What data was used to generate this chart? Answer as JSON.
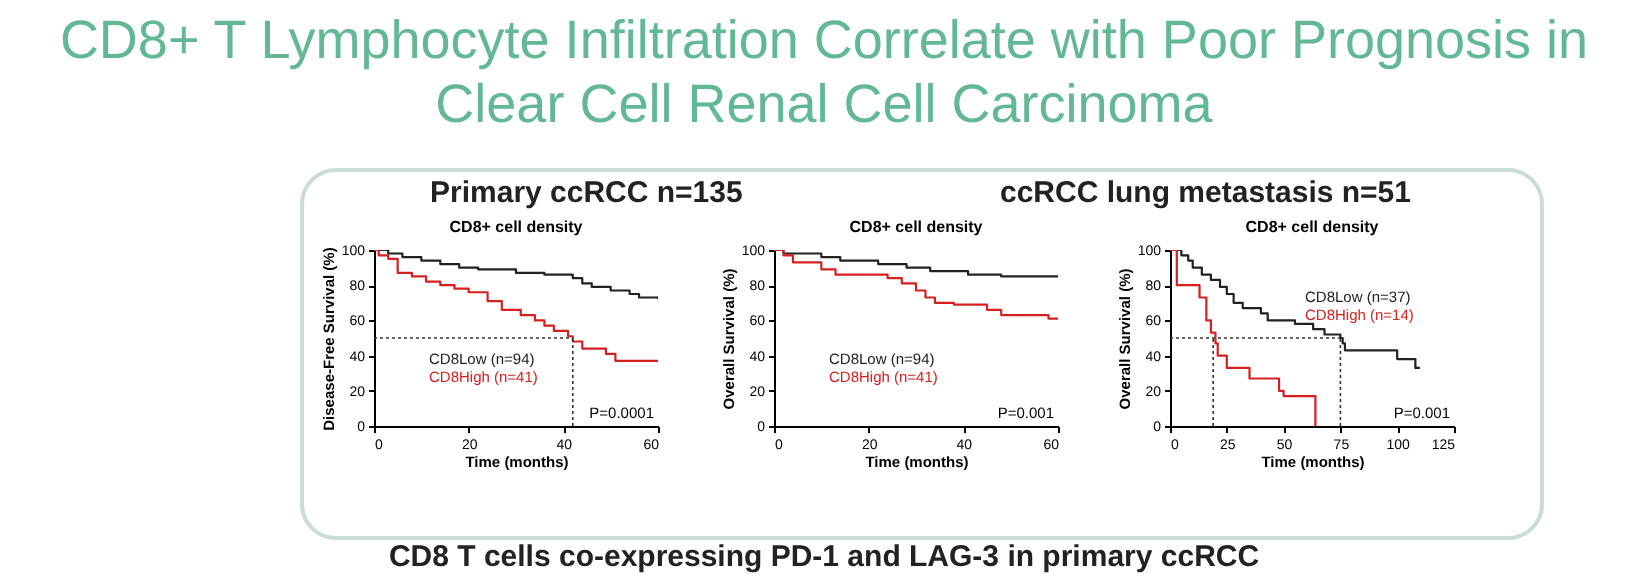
{
  "chart_data": [
    {
      "type": "step",
      "title": "CD8+ cell density",
      "xlabel": "Time (months)",
      "ylabel": "Disease-Free Survival (%)",
      "xlim": [
        0,
        60
      ],
      "xticks": [
        0,
        20,
        40,
        60
      ],
      "ylim": [
        0,
        100
      ],
      "yticks": [
        0,
        20,
        40,
        60,
        80,
        100
      ],
      "legend": "bottom left",
      "grid": false,
      "annotations": [
        "CD8+ T Lymphocyte Infiltration Correlate with Poor Prognosis in Clear Cell Renal Cell Carcinoma",
        "Primary ccRCC n=135",
        "P=0.0001"
      ],
      "ref_lines": [
        {
          "axis": "y",
          "value": 50,
          "line_style": "dotted"
        },
        {
          "axis": "x",
          "value": 42,
          "line_style": "dotted"
        }
      ],
      "series": [
        {
          "name": "CD8Low (n=94)",
          "color": "#222222",
          "x": [
            0,
            3,
            6,
            10,
            14,
            18,
            22,
            30,
            36,
            42,
            44,
            46,
            50,
            54,
            56,
            60
          ],
          "values": [
            100,
            98,
            96,
            94,
            92,
            90,
            89,
            87,
            86,
            84,
            81,
            79,
            77,
            75,
            73,
            72
          ]
        },
        {
          "name": "CD8High (n=41)",
          "color": "#d62020",
          "x": [
            0,
            1,
            3,
            5,
            8,
            11,
            14,
            17,
            20,
            24,
            27,
            31,
            34,
            36,
            38,
            41,
            42,
            44,
            49,
            51,
            60
          ],
          "values": [
            100,
            97,
            95,
            87,
            85,
            82,
            80,
            78,
            76,
            71,
            66,
            63,
            60,
            57,
            54,
            51,
            48,
            44,
            41,
            37,
            37
          ]
        }
      ]
    },
    {
      "type": "step",
      "title": "CD8+ cell density",
      "xlabel": "Time (months)",
      "ylabel": "Overall Survival (%)",
      "xlim": [
        0,
        60
      ],
      "xticks": [
        0,
        20,
        40,
        60
      ],
      "ylim": [
        0,
        100
      ],
      "yticks": [
        0,
        20,
        40,
        60,
        80,
        100
      ],
      "legend": "bottom left",
      "grid": false,
      "annotations": [
        "P=0.001"
      ],
      "series": [
        {
          "name": "CD8Low (n=94)",
          "color": "#222222",
          "x": [
            0,
            2,
            10,
            14,
            22,
            28,
            33,
            41,
            48,
            60
          ],
          "values": [
            100,
            98,
            96,
            94,
            92,
            90,
            88,
            86,
            85,
            85
          ]
        },
        {
          "name": "CD8High (n=41)",
          "color": "#d62020",
          "x": [
            0,
            2,
            4,
            10,
            13,
            24,
            27,
            30,
            32,
            34,
            38,
            45,
            48,
            58,
            60
          ],
          "values": [
            100,
            97,
            93,
            89,
            86,
            84,
            81,
            77,
            73,
            70,
            69,
            66,
            63,
            61,
            61
          ]
        }
      ]
    },
    {
      "type": "step",
      "title": "CD8+ cell density",
      "xlabel": "Time (months)",
      "ylabel": "Overall Survival (%)",
      "xlim": [
        0,
        125
      ],
      "xticks": [
        0,
        25,
        50,
        75,
        100,
        125
      ],
      "ylim": [
        0,
        100
      ],
      "yticks": [
        0,
        20,
        40,
        60,
        80,
        100
      ],
      "legend": "top right",
      "grid": false,
      "annotations": [
        "ccRCC lung metastasis n=51",
        "CD8 T cells co-expressing PD-1 and LAG-3 in primary ccRCC",
        "P=0.001"
      ],
      "ref_lines": [
        {
          "axis": "y",
          "value": 50,
          "line_style": "dotted"
        },
        {
          "axis": "x",
          "value": 19,
          "line_style": "dotted"
        },
        {
          "axis": "x",
          "value": 75,
          "line_style": "dotted"
        }
      ],
      "series": [
        {
          "name": "CD8Low (n=37)",
          "color": "#222222",
          "x": [
            0,
            5,
            8,
            10,
            14,
            18,
            22,
            25,
            28,
            32,
            40,
            43,
            55,
            63,
            68,
            75,
            76,
            77,
            95,
            100,
            108,
            110
          ],
          "values": [
            100,
            97,
            94,
            90,
            86,
            83,
            79,
            75,
            70,
            67,
            64,
            60,
            58,
            55,
            52,
            50,
            47,
            43,
            43,
            38,
            33,
            33
          ]
        },
        {
          "name": "CD8High (n=14)",
          "color": "#d62020",
          "x": [
            0,
            3,
            13,
            16,
            18,
            20,
            21,
            25,
            35,
            48,
            50,
            63,
            64
          ],
          "values": [
            100,
            80,
            73,
            60,
            53,
            47,
            40,
            33,
            27,
            20,
            17,
            17,
            0
          ]
        }
      ]
    }
  ]
}
